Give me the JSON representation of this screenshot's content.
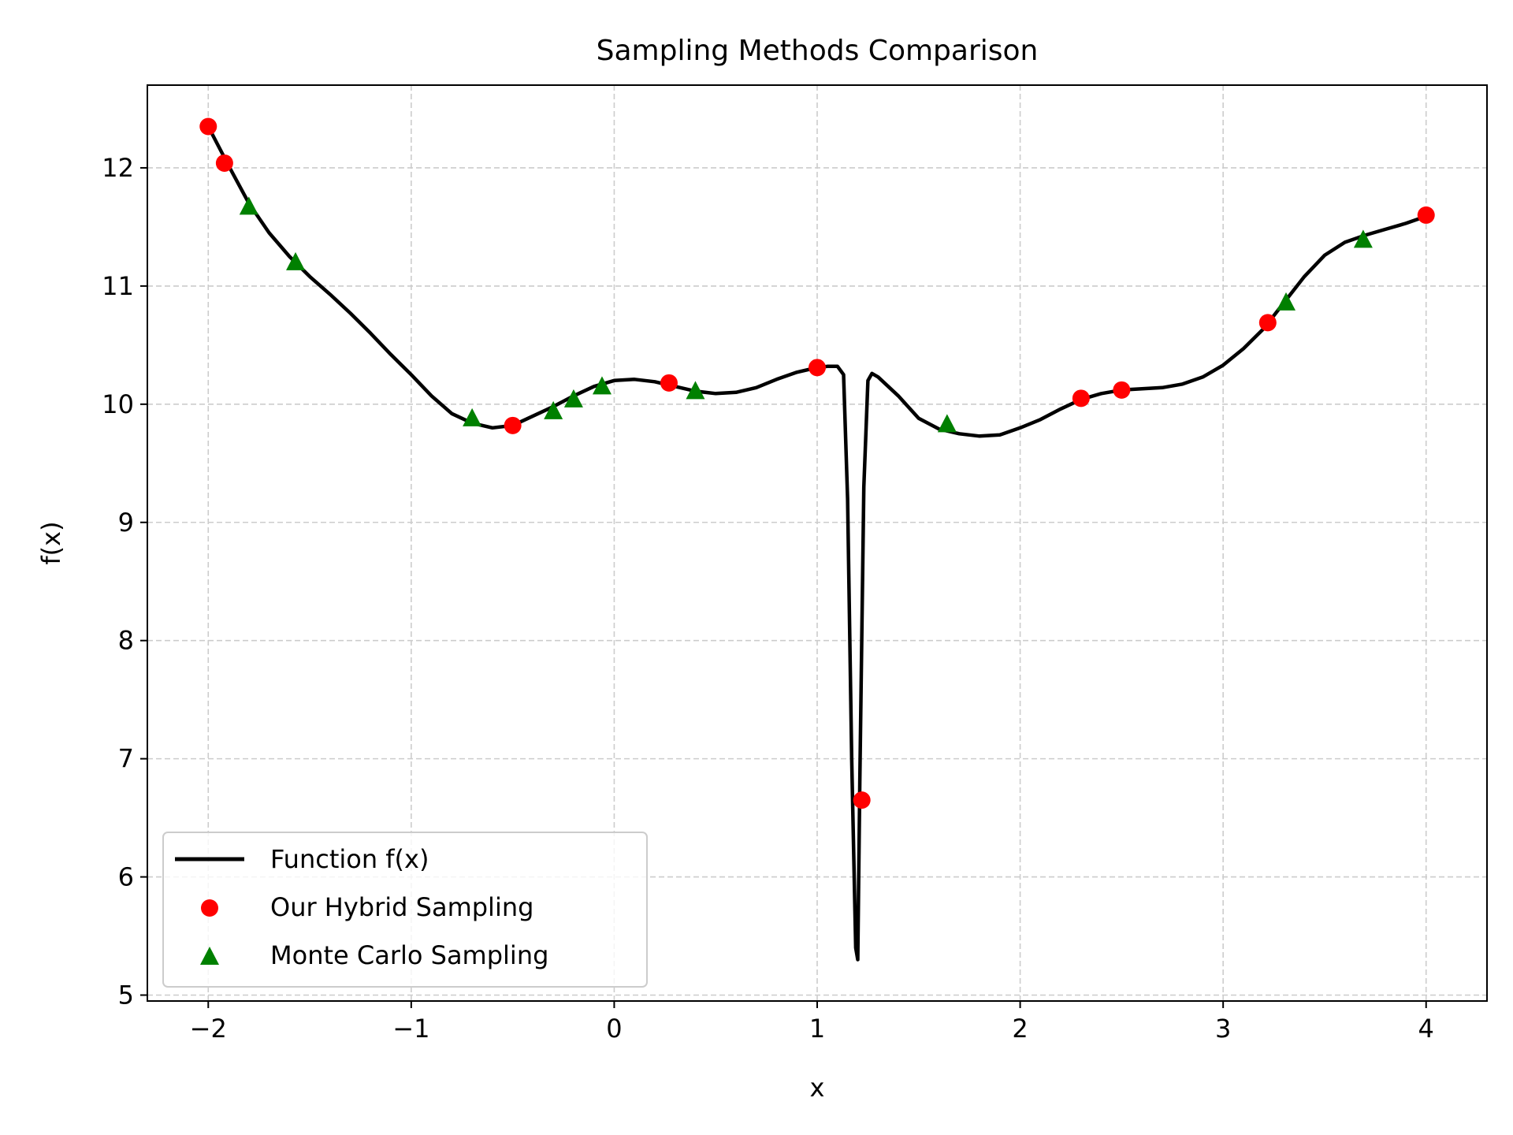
{
  "chart_data": {
    "type": "line",
    "title": "Sampling Methods Comparison",
    "xlabel": "x",
    "ylabel": "f(x)",
    "xlim": [
      -2.3,
      4.3
    ],
    "ylim": [
      4.95,
      12.7
    ],
    "x_ticks": [
      -2,
      -1,
      0,
      1,
      2,
      3,
      4
    ],
    "x_tick_labels": [
      "−2",
      "−1",
      "0",
      "1",
      "2",
      "3",
      "4"
    ],
    "y_ticks": [
      5,
      6,
      7,
      8,
      9,
      10,
      11,
      12
    ],
    "y_tick_labels": [
      "5",
      "6",
      "7",
      "8",
      "9",
      "10",
      "11",
      "12"
    ],
    "grid": true,
    "legend_position": "lower-left",
    "series": [
      {
        "name": "Function f(x)",
        "kind": "line",
        "color": "#000000",
        "x": [
          -2.0,
          -1.9,
          -1.8,
          -1.7,
          -1.6,
          -1.5,
          -1.4,
          -1.3,
          -1.2,
          -1.1,
          -1.0,
          -0.9,
          -0.8,
          -0.7,
          -0.6,
          -0.5,
          -0.4,
          -0.3,
          -0.2,
          -0.1,
          0.0,
          0.1,
          0.2,
          0.3,
          0.4,
          0.5,
          0.6,
          0.7,
          0.8,
          0.9,
          1.0,
          1.05,
          1.1,
          1.13,
          1.15,
          1.17,
          1.19,
          1.2,
          1.21,
          1.23,
          1.25,
          1.27,
          1.3,
          1.4,
          1.5,
          1.6,
          1.7,
          1.8,
          1.9,
          2.0,
          2.1,
          2.2,
          2.3,
          2.4,
          2.5,
          2.6,
          2.7,
          2.8,
          2.9,
          3.0,
          3.1,
          3.2,
          3.3,
          3.4,
          3.5,
          3.6,
          3.7,
          3.8,
          3.9,
          4.0
        ],
        "y": [
          12.35,
          12.02,
          11.7,
          11.45,
          11.25,
          11.08,
          10.93,
          10.77,
          10.6,
          10.42,
          10.25,
          10.07,
          9.92,
          9.84,
          9.8,
          9.82,
          9.9,
          9.98,
          10.07,
          10.15,
          10.2,
          10.21,
          10.19,
          10.15,
          10.11,
          10.09,
          10.1,
          10.14,
          10.21,
          10.27,
          10.31,
          10.32,
          10.32,
          10.25,
          9.2,
          7.0,
          5.4,
          5.3,
          6.8,
          9.3,
          10.2,
          10.26,
          10.23,
          10.07,
          9.88,
          9.79,
          9.75,
          9.73,
          9.74,
          9.8,
          9.87,
          9.96,
          10.04,
          10.09,
          10.12,
          10.13,
          10.14,
          10.17,
          10.23,
          10.33,
          10.47,
          10.64,
          10.86,
          11.08,
          11.26,
          11.37,
          11.43,
          11.48,
          11.53,
          11.59
        ]
      },
      {
        "name": "Our Hybrid Sampling",
        "kind": "scatter",
        "marker": "circle",
        "color": "#ff0000",
        "x": [
          -2.0,
          -1.92,
          -0.5,
          0.27,
          1.0,
          1.22,
          2.3,
          2.5,
          3.22,
          4.0
        ],
        "y": [
          12.35,
          12.04,
          9.82,
          10.18,
          10.31,
          6.65,
          10.05,
          10.12,
          10.69,
          11.6
        ]
      },
      {
        "name": "Monte Carlo Sampling",
        "kind": "scatter",
        "marker": "triangle",
        "color": "#008000",
        "x": [
          -1.8,
          -1.57,
          -0.7,
          -0.3,
          -0.2,
          -0.06,
          0.4,
          1.64,
          3.31,
          3.69
        ],
        "y": [
          11.67,
          11.2,
          9.88,
          9.94,
          10.04,
          10.15,
          10.11,
          9.83,
          10.86,
          11.39
        ]
      }
    ]
  }
}
